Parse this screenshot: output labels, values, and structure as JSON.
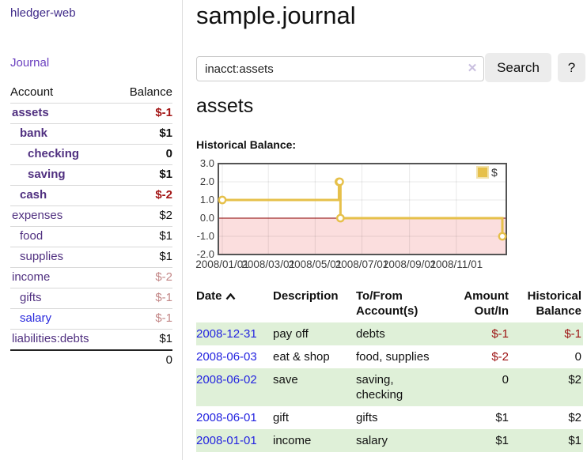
{
  "sidebar": {
    "app_title": "hledger-web",
    "journal_link": "Journal",
    "table": {
      "account_header": "Account",
      "balance_header": "Balance",
      "rows": [
        {
          "label": "assets",
          "indent": 1,
          "bold": true,
          "value": "$-1",
          "value_style": "neg-strong",
          "link_color": "purple"
        },
        {
          "label": "bank",
          "indent": 2,
          "bold": true,
          "value": "$1",
          "value_style": "pos",
          "link_color": "purple"
        },
        {
          "label": "checking",
          "indent": 3,
          "bold": true,
          "value": "0",
          "value_style": "pos",
          "link_color": "purple"
        },
        {
          "label": "saving",
          "indent": 3,
          "bold": true,
          "value": "$1",
          "value_style": "pos",
          "link_color": "purple"
        },
        {
          "label": "cash",
          "indent": 2,
          "bold": true,
          "value": "$-2",
          "value_style": "neg-strong",
          "link_color": "purple"
        },
        {
          "label": "expenses",
          "indent": 1,
          "bold": false,
          "value": "$2",
          "value_style": "pos",
          "link_color": "purple"
        },
        {
          "label": "food",
          "indent": 2,
          "bold": false,
          "value": "$1",
          "value_style": "pos",
          "link_color": "purple"
        },
        {
          "label": "supplies",
          "indent": 2,
          "bold": false,
          "value": "$1",
          "value_style": "pos",
          "link_color": "purple"
        },
        {
          "label": "income",
          "indent": 1,
          "bold": false,
          "value": "$-2",
          "value_style": "neg-soft",
          "link_color": "purple"
        },
        {
          "label": "gifts",
          "indent": 2,
          "bold": false,
          "value": "$-1",
          "value_style": "neg-soft",
          "link_color": "purple"
        },
        {
          "label": "salary",
          "indent": 2,
          "bold": false,
          "value": "$-1",
          "value_style": "neg-soft",
          "link_color": "blue"
        },
        {
          "label": "liabilities:debts",
          "indent": 1,
          "bold": false,
          "value": "$1",
          "value_style": "pos",
          "link_color": "purple"
        }
      ],
      "total": "0"
    }
  },
  "main": {
    "title": "sample.journal",
    "search": {
      "value": "inacct:assets",
      "clear_icon": "✕",
      "button_label": "Search",
      "help_label": "?"
    },
    "account_heading": "assets",
    "chart_label": "Historical Balance:",
    "table": {
      "headers": [
        "Date",
        "Description",
        "To/From Account(s)",
        "Amount Out/In",
        "Historical Balance"
      ],
      "rows": [
        {
          "date": "2008-12-31",
          "description": "pay off",
          "accounts": "debts",
          "amount": "$-1",
          "amount_neg": true,
          "balance": "$-1",
          "balance_neg": true,
          "green": true
        },
        {
          "date": "2008-06-03",
          "description": "eat & shop",
          "accounts": "food, supplies",
          "amount": "$-2",
          "amount_neg": true,
          "balance": "0",
          "balance_neg": false,
          "green": false
        },
        {
          "date": "2008-06-02",
          "description": "save",
          "accounts": "saving, checking",
          "amount": "0",
          "amount_neg": false,
          "balance": "$2",
          "balance_neg": false,
          "green": true
        },
        {
          "date": "2008-06-01",
          "description": "gift",
          "accounts": "gifts",
          "amount": "$1",
          "amount_neg": false,
          "balance": "$2",
          "balance_neg": false,
          "green": false
        },
        {
          "date": "2008-01-01",
          "description": "income",
          "accounts": "salary",
          "amount": "$1",
          "amount_neg": false,
          "balance": "$1",
          "balance_neg": false,
          "green": true
        }
      ]
    }
  },
  "chart_data": {
    "type": "line",
    "style": "step",
    "title": "Historical Balance",
    "legend": [
      {
        "label": "$",
        "color": "#e6c04a"
      }
    ],
    "legend_position": "top-right",
    "series": [
      {
        "name": "$",
        "points": [
          [
            "2008-01-01",
            1
          ],
          [
            "2008-06-01",
            2
          ],
          [
            "2008-06-02",
            2
          ],
          [
            "2008-06-03",
            0
          ],
          [
            "2008-12-31",
            -1
          ]
        ]
      }
    ],
    "x_ticks": [
      "2008/01/01",
      "2008/03/01",
      "2008/05/01",
      "2008/07/01",
      "2008/09/01",
      "2008/11/01"
    ],
    "x_tick_dates": [
      "2008-01-01",
      "2008-03-01",
      "2008-05-01",
      "2008-07-01",
      "2008-09-01",
      "2008-11-01"
    ],
    "y_ticks": [
      3.0,
      2.0,
      1.0,
      0.0,
      -1.0,
      -2.0
    ],
    "ylim": [
      -2.0,
      3.0
    ],
    "xlim": [
      "2008-01-01",
      "2008-12-31"
    ],
    "grid": true,
    "colors": {
      "line": "#e6c04a",
      "marker_fill": "#ffffff",
      "negative_region": "#fbdede",
      "zero_line": "#8b0000",
      "border": "#545454",
      "grid_line": "#e3e3e3",
      "axis_text": "#3c3c3c"
    }
  }
}
